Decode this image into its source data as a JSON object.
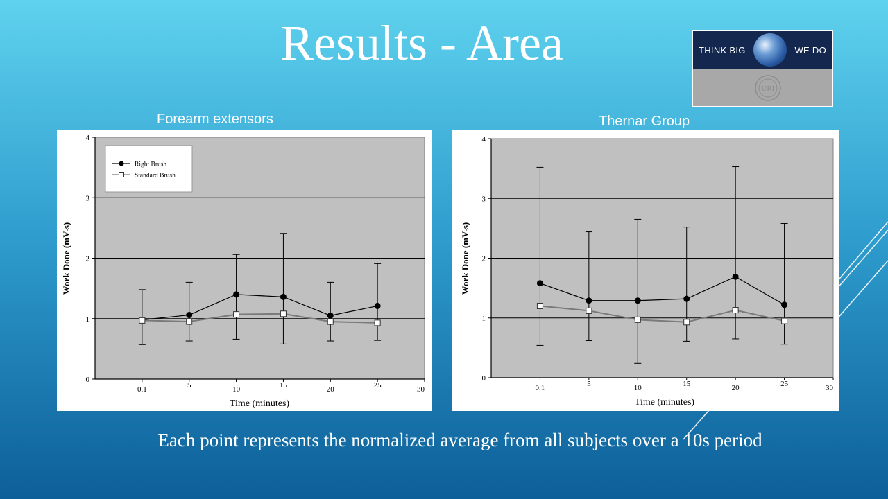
{
  "slide": {
    "title": "Results - Area",
    "caption": "Each point represents the normalized average from all subjects over a 10s period"
  },
  "logo": {
    "text_left": "THINK BIG",
    "text_right": "WE DO",
    "seal_text": "URI",
    "colors": {
      "band": "#14284f",
      "lower": "#a8a8a8"
    }
  },
  "chart_data": [
    {
      "type": "line",
      "title": "Forearm extensors",
      "xlabel": "Time (minutes)",
      "ylabel": "Work Done (mV-s)",
      "x_categories": [
        "0.1",
        "5",
        "10",
        "15",
        "20",
        "25",
        "30"
      ],
      "x_positions": [
        1,
        2,
        3,
        4,
        5,
        6,
        7
      ],
      "xlim": [
        0,
        7
      ],
      "ylim": [
        0,
        4
      ],
      "yticks": [
        "0",
        "1",
        "2",
        "3",
        "4"
      ],
      "grid": "horizontal",
      "legend": {
        "placement": "top-left",
        "entries": [
          "Right Brush",
          "Standard Brush"
        ]
      },
      "series": [
        {
          "name": "Right Brush",
          "marker": "filled-circle",
          "color": "#000000",
          "x": [
            1,
            2,
            3,
            4,
            5,
            6
          ],
          "values": [
            0.98,
            1.06,
            1.4,
            1.36,
            1.05,
            1.21
          ],
          "err_high": [
            1.48,
            1.6,
            2.06,
            2.41,
            1.6,
            1.91
          ],
          "err_low": [
            0.57,
            0.63,
            0.66,
            0.58,
            0.63,
            0.64
          ]
        },
        {
          "name": "Standard Brush",
          "marker": "open-square",
          "color": "#7a7a7a",
          "x": [
            1,
            2,
            3,
            4,
            5,
            6
          ],
          "values": [
            0.97,
            0.95,
            1.07,
            1.08,
            0.95,
            0.93
          ],
          "err_high": [],
          "err_low": []
        }
      ]
    },
    {
      "type": "line",
      "title": "Thernar Group",
      "xlabel": "Time (minutes)",
      "ylabel": "Work Done (mV-s)",
      "x_categories": [
        "0.1",
        "5",
        "10",
        "15",
        "20",
        "25",
        "30"
      ],
      "x_positions": [
        1,
        2,
        3,
        4,
        5,
        6,
        7
      ],
      "xlim": [
        0,
        7
      ],
      "ylim": [
        0,
        4
      ],
      "yticks": [
        "0",
        "1",
        "2",
        "3",
        "4"
      ],
      "grid": "horizontal",
      "legend": null,
      "series": [
        {
          "name": "",
          "marker": "filled-circle",
          "color": "#000000",
          "x": [
            1,
            2,
            3,
            4,
            5,
            6
          ],
          "values": [
            1.58,
            1.29,
            1.29,
            1.32,
            1.69,
            1.22
          ],
          "err_high": [
            3.52,
            2.44,
            2.65,
            2.52,
            3.53,
            2.58
          ],
          "err_low": [
            0.54,
            0.62,
            0.24,
            0.61,
            0.65,
            0.56
          ]
        },
        {
          "name": "",
          "marker": "open-square",
          "color": "#7a7a7a",
          "x": [
            1,
            2,
            3,
            4,
            5,
            6
          ],
          "values": [
            1.2,
            1.12,
            0.97,
            0.93,
            1.13,
            0.95
          ],
          "err_high": [],
          "err_low": []
        }
      ]
    }
  ]
}
